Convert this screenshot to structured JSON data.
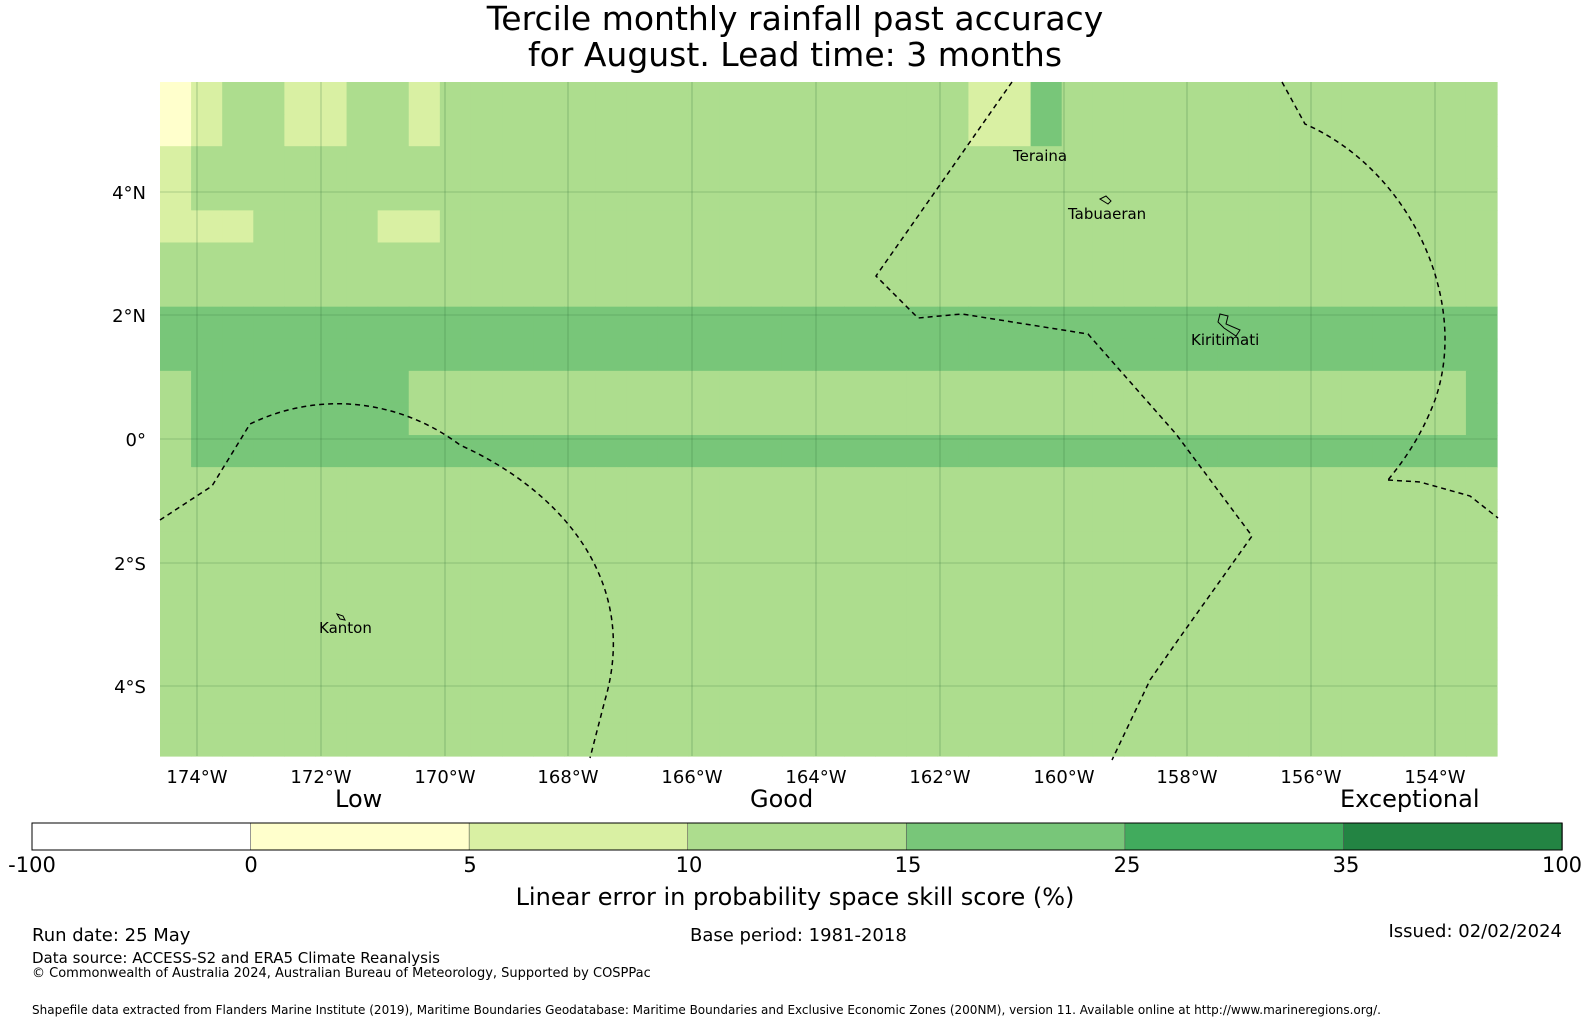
{
  "title": {
    "line1": "Tercile monthly rainfall past accuracy",
    "line2": "for August. Lead time: 3 months"
  },
  "map": {
    "lon_ticks": [
      "174°W",
      "172°W",
      "170°W",
      "168°W",
      "166°W",
      "164°W",
      "162°W",
      "160°W",
      "158°W",
      "156°W",
      "154°W"
    ],
    "lat_ticks": [
      "4°N",
      "2°N",
      "0°",
      "2°S",
      "4°S"
    ],
    "places": [
      "Teraina",
      "Tabuaeran",
      "Kiritimati",
      "Kanton"
    ],
    "lon_range": [
      -174.6,
      -153.0
    ],
    "lat_range": [
      -5.2,
      5.8
    ],
    "grid_rows": [
      "ABCCBBCCBCCCCCCCCCCCCCCCCCBBDCCCCCCCCCCCCCC",
      "ABCCBBCCBCCCCCCCCCCCCCCCCCBBDCCCCCCCCCCCCCC",
      "BCCCCCCCCCCCCCCCCCCCCCCCCCCCCCCCCCCCCCCCCCC",
      "BCCCCCCCCCCCCCCCCCCCCCCCCCCCCCCCCCCCCCCCCCC",
      "BBBCCCCBBCCCCCCCCCCCCCCCCCCCCCCCCCCCCCCCCCC",
      "CCCCCCCCCCCCCCCCCCCCCCCCCCCCCCCCCCCCCCCCCCC",
      "CCCCCCCCCCCCCCCCCCCCCCCCCCCCCCCCCCCCCCCCCCC",
      "DDDDDDDDDDDDDDDDDDDDDDDDDDDDDDDDDDDDDDDDDDD",
      "DDDDDDDDDDDDDDDDDDDDDDDDDDDDDDDDDDDDDDDDDDD",
      "CDDDDDDDCCCCCCCCCCCCCCCCCCCCCCCCCCCCCCCCCCD",
      "CDDDDDDDCCCCCCCCCCCCCCCCCCCCCCCCCCCCCCCCCCD",
      "CDDDDDDDDDDDDDDDDDDDDDDDDDDDDDDDDDDDDDDDDDD",
      "CCCCCCCCCCCCCCCCCCCCCCCCCCCCCCCCCCCCCCCCCCC",
      "CCCCCCCCCCCCCCCCCCCCCCCCCCCCCCCCCCCCCCCCCCC",
      "CCCCCCCCCCCCCCCCCCCCCCCCCCCCCCCCCCCCCCCCCCC",
      "CCCCCCCCCCCCCCCCCCCCCCCCCCCCCCCCCCCCCCCCCCC",
      "CCCCCCCCCCCCCCCCCCCCCCCCCCCCCCCCCCCCCCCCCCC",
      "CCCCCCCCCCCCCCCCCCCCCCCCCCCCCCCCCCCCCCCCCCC",
      "CCCCCCCCCCCCCCCCCCCCCCCCCCCCCCCCCCCCCCCCCCC",
      "CCCCCCCCCCCCCCCCCCCCCCCCCCCCCCCCCCCCCCCCCCC",
      "CCCCCCCCCCCCCCCCCCCCCCCCCCCCCCCCCCCCCCCCCCC"
    ]
  },
  "legend": {
    "categories": [
      "Low",
      "Good",
      "Exceptional"
    ],
    "bounds": [
      "-100",
      "0",
      "5",
      "10",
      "15",
      "25",
      "35",
      "100"
    ],
    "colors": [
      "#ffffff",
      "#ffffcc",
      "#d9f0a3",
      "#addd8e",
      "#78c679",
      "#41ab5d",
      "#238443"
    ],
    "label": "Linear error in probability space skill score (%)"
  },
  "footer": {
    "run_date": "Run date: 25 May",
    "base_period": "Base period: 1981-2018",
    "issued": "Issued: 02/02/2024",
    "data_source": "Data source: ACCESS-S2 and ERA5 Climate Reanalysis",
    "copyright": "© Commonwealth of Australia 2024, Australian Bureau of Meteorology, Supported by COSPPac",
    "shapefile": "Shapefile data extracted from Flanders Marine Institute (2019), Maritime Boundaries Geodatabase: Maritime Boundaries and Exclusive Economic Zones (200NM), version 11. Available online at http://www.marineregions.org/."
  }
}
